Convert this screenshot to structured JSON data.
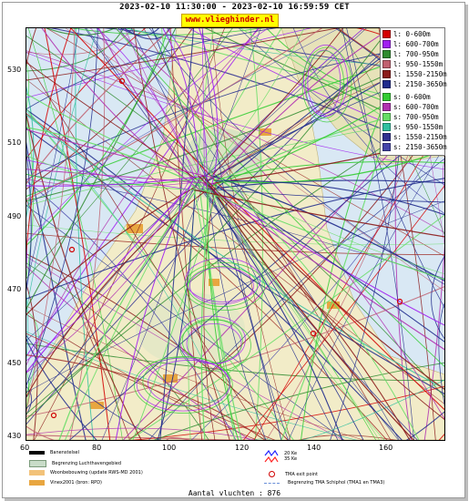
{
  "title": "2023-02-10 11:30:00 - 2023-02-10 16:59:59 CET",
  "site": "www.vlieghinder.nl",
  "axes": {
    "y_ticks": [
      "530",
      "510",
      "490",
      "470",
      "450",
      "430"
    ],
    "x_ticks": [
      "60",
      "80",
      "100",
      "120",
      "140",
      "160"
    ]
  },
  "legend": [
    {
      "label": "l: 0-600m",
      "color": "#d40000"
    },
    {
      "label": "l: 600-700m",
      "color": "#a020f0"
    },
    {
      "label": "l: 700-950m",
      "color": "#2e8b2e"
    },
    {
      "label": "l: 950-1550m",
      "color": "#c06070"
    },
    {
      "label": "l: 1550-2150m",
      "color": "#8b1a1a"
    },
    {
      "label": "l: 2150-3650m",
      "color": "#1e2a8c"
    },
    {
      "label": "s: 0-600m",
      "color": "#33cc33"
    },
    {
      "label": "s: 600-700m",
      "color": "#b030b0"
    },
    {
      "label": "s: 700-950m",
      "color": "#66dd66"
    },
    {
      "label": "s: 950-1550m",
      "color": "#30c0a0"
    },
    {
      "label": "s: 1550-2150m",
      "color": "#303090"
    },
    {
      "label": "s: 2150-3650m",
      "color": "#4444aa"
    }
  ],
  "bottom_legend": {
    "runway": "Banenstelsel",
    "airport_boundary": "Begrenzing Luchthavengebied",
    "housing": "Woonbebouwing (update RWS-MD 2001)",
    "vinex": "Vinex2001 (bron: RPD)",
    "ke20": "20 Ke",
    "ke35": "35 Ke",
    "tma_exit": "TMA exit point",
    "tma_boundary": "Begrenzing TMA Schiphol  (TMA1 en TMA3)"
  },
  "colors": {
    "ke20": "#2020ff",
    "ke35": "#ff2020",
    "tma": "#d00000",
    "tma_line": "#6a8fd8"
  },
  "count_label": "Aantal vluchten : 876"
}
